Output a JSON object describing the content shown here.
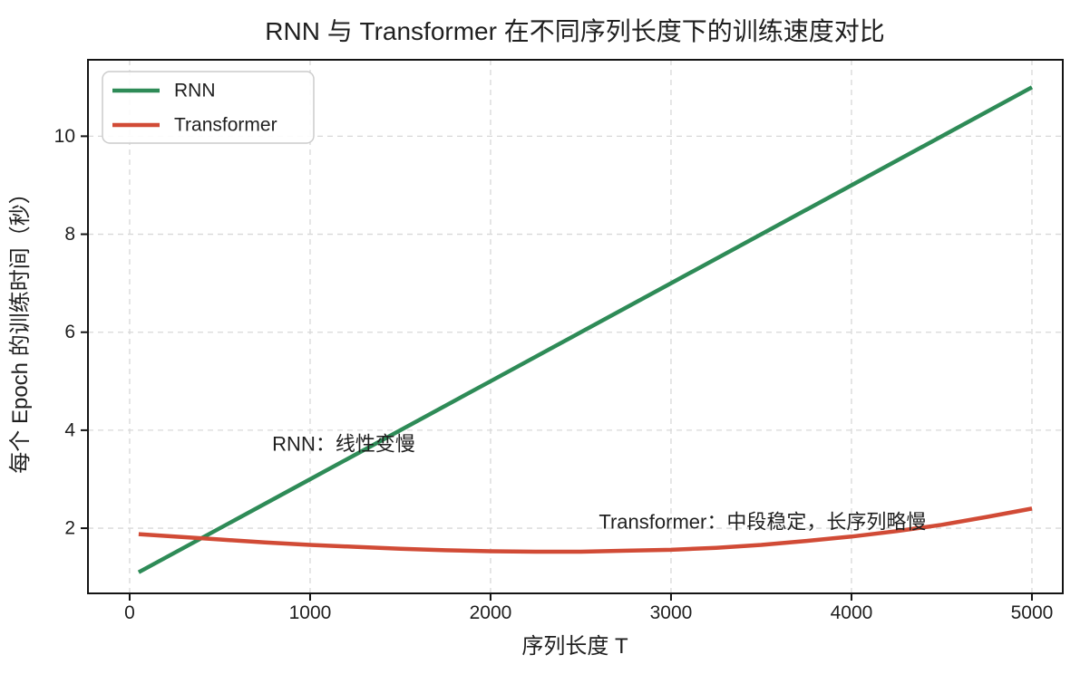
{
  "figure": {
    "kind": "matplotlib-style line chart",
    "background": "#ffffff"
  },
  "colors": {
    "rnn_green": "#2e8b57",
    "transformer_red": "#d14b36",
    "grid": "#d8d8d8",
    "spine": "#141414",
    "text": "#1f1f1f",
    "legend_border": "#cccccc",
    "legend_fill": "#ffffff"
  },
  "chart_data": {
    "type": "line",
    "title": "RNN 与 Transformer 在不同序列长度下的训练速度对比",
    "xlabel": "序列长度 T",
    "ylabel": "每个 Epoch 的训练时间（秒）",
    "xlim": [
      -231,
      5171
    ],
    "ylim": [
      0.67,
      11.56
    ],
    "xticks": [
      0,
      1000,
      2000,
      3000,
      4000,
      5000
    ],
    "yticks": [
      2,
      4,
      6,
      8,
      10
    ],
    "grid": true,
    "grid_style": "dashed",
    "legend_position": "upper-left",
    "series": [
      {
        "name": "RNN",
        "color": "#2e8b57",
        "x": [
          50,
          1000,
          2000,
          3000,
          4000,
          5000
        ],
        "y": [
          1.1,
          3.0,
          5.0,
          7.0,
          9.0,
          11.0
        ]
      },
      {
        "name": "Transformer",
        "color": "#d14b36",
        "x": [
          50,
          250,
          500,
          750,
          1000,
          1250,
          1500,
          1750,
          2000,
          2250,
          2500,
          2750,
          3000,
          3250,
          3500,
          3750,
          4000,
          4250,
          4500,
          4750,
          5000
        ],
        "y": [
          1.88,
          1.83,
          1.77,
          1.71,
          1.66,
          1.62,
          1.58,
          1.55,
          1.53,
          1.52,
          1.52,
          1.54,
          1.56,
          1.6,
          1.66,
          1.74,
          1.83,
          1.94,
          2.07,
          2.23,
          2.4
        ]
      }
    ],
    "annotations": [
      {
        "text": "RNN：线性变慢",
        "x": 790,
        "y": 3.72,
        "color": "#2e8b57"
      },
      {
        "text": "Transformer：中段稳定，长序列略慢",
        "x": 2600,
        "y": 2.13,
        "color": "#d14b36"
      }
    ]
  }
}
